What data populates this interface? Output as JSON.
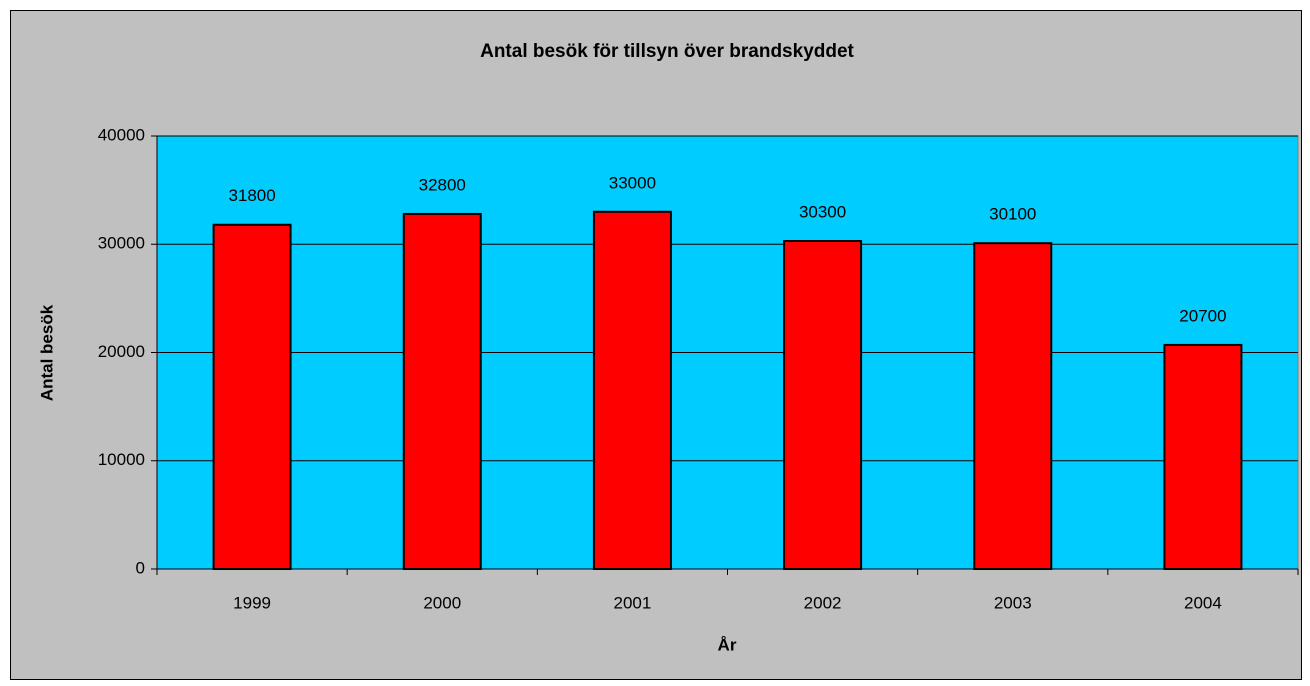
{
  "chart_data": {
    "type": "bar",
    "title": "Antal besök för tillsyn över brandskyddet",
    "x_label": "År",
    "y_label": "Antal besök",
    "categories": [
      "1999",
      "2000",
      "2001",
      "2002",
      "2003",
      "2004"
    ],
    "values": [
      31800,
      32800,
      33000,
      30300,
      30100,
      20700
    ],
    "color": "#ff0000",
    "ylim": [
      0,
      40000
    ],
    "yticks": [
      0,
      10000,
      20000,
      30000,
      40000
    ],
    "grid": true,
    "data_labels": true
  }
}
